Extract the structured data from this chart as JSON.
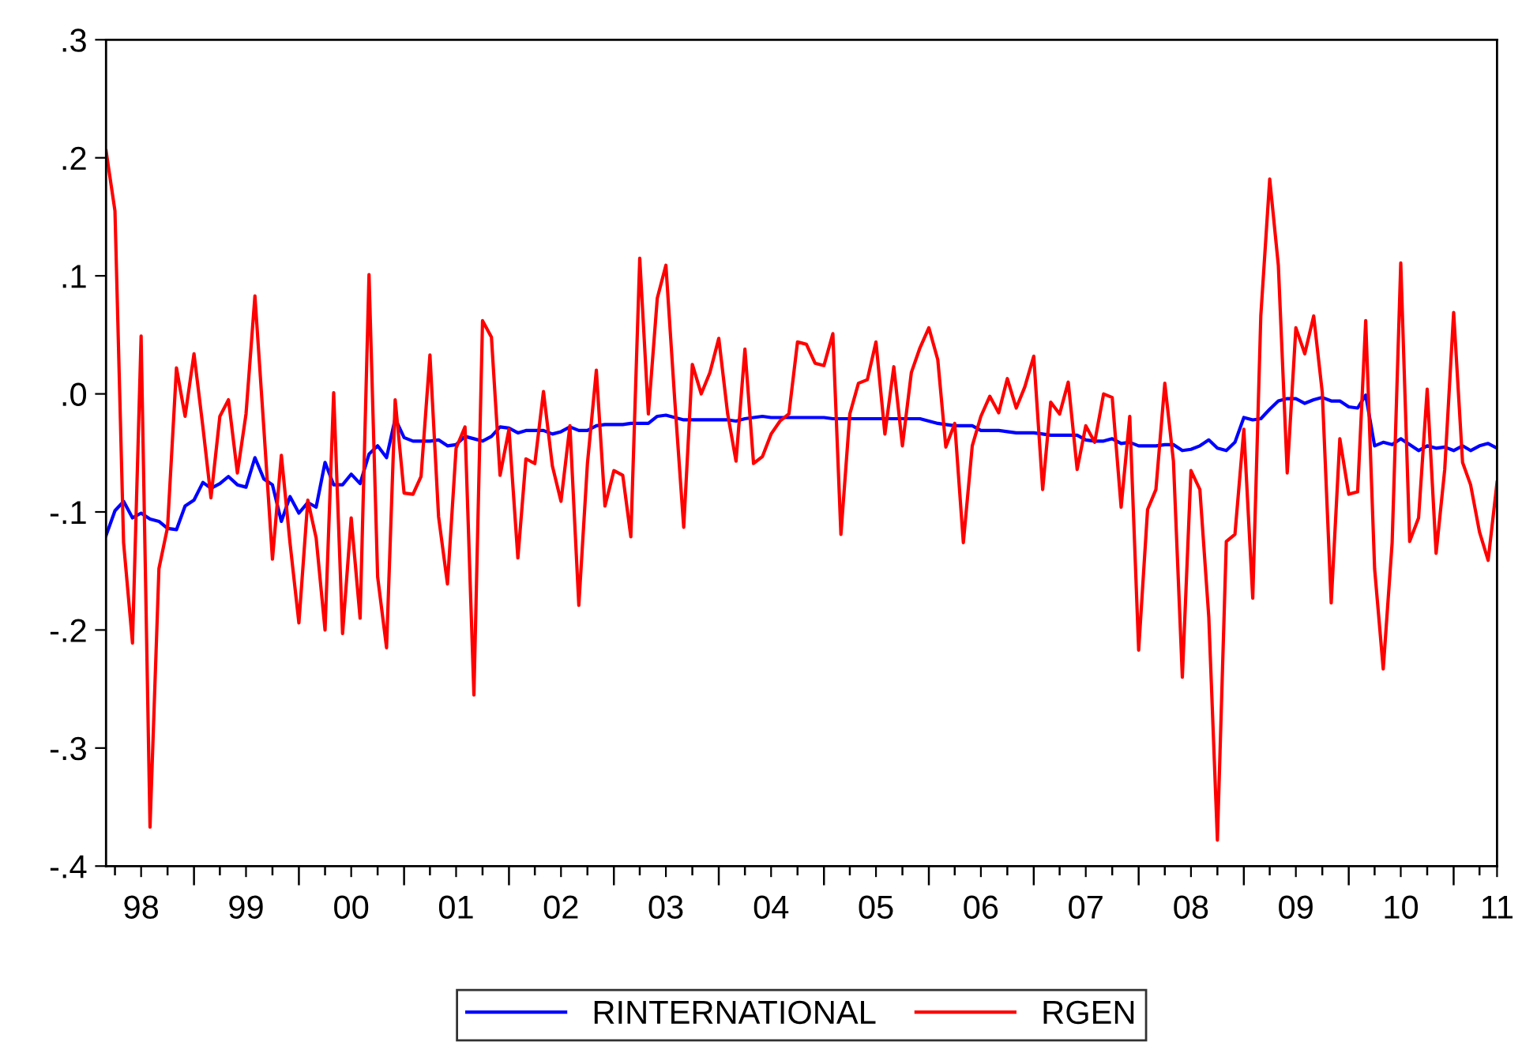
{
  "chart_data": {
    "type": "line",
    "x": [
      "1998-03",
      "1998-04",
      "1998-05",
      "1998-06",
      "1998-07",
      "1998-08",
      "1998-09",
      "1998-10",
      "1998-11",
      "1998-12",
      "1999-01",
      "1999-02",
      "1999-03",
      "1999-04",
      "1999-05",
      "1999-06",
      "1999-07",
      "1999-08",
      "1999-09",
      "1999-10",
      "1999-11",
      "1999-12",
      "2000-01",
      "2000-02",
      "2000-03",
      "2000-04",
      "2000-05",
      "2000-06",
      "2000-07",
      "2000-08",
      "2000-09",
      "2000-10",
      "2000-11",
      "2000-12",
      "2001-01",
      "2001-02",
      "2001-03",
      "2001-04",
      "2001-05",
      "2001-06",
      "2001-07",
      "2001-08",
      "2001-09",
      "2001-10",
      "2001-11",
      "2001-12",
      "2002-01",
      "2002-02",
      "2002-03",
      "2002-04",
      "2002-05",
      "2002-06",
      "2002-07",
      "2002-08",
      "2002-09",
      "2002-10",
      "2002-11",
      "2002-12",
      "2003-01",
      "2003-02",
      "2003-03",
      "2003-04",
      "2003-05",
      "2003-06",
      "2003-07",
      "2003-08",
      "2003-09",
      "2003-10",
      "2003-11",
      "2003-12",
      "2004-01",
      "2004-02",
      "2004-03",
      "2004-04",
      "2004-05",
      "2004-06",
      "2004-07",
      "2004-08",
      "2004-09",
      "2004-10",
      "2004-11",
      "2004-12",
      "2005-01",
      "2005-02",
      "2005-03",
      "2005-04",
      "2005-05",
      "2005-06",
      "2005-07",
      "2005-08",
      "2005-09",
      "2005-10",
      "2005-11",
      "2005-12",
      "2006-01",
      "2006-02",
      "2006-03",
      "2006-04",
      "2006-05",
      "2006-06",
      "2006-07",
      "2006-08",
      "2006-09",
      "2006-10",
      "2006-11",
      "2006-12",
      "2007-01",
      "2007-02",
      "2007-03",
      "2007-04",
      "2007-05",
      "2007-06",
      "2007-07",
      "2007-08",
      "2007-09",
      "2007-10",
      "2007-11",
      "2007-12",
      "2008-01",
      "2008-02",
      "2008-03",
      "2008-04",
      "2008-05",
      "2008-06",
      "2008-07",
      "2008-08",
      "2008-09",
      "2008-10",
      "2008-11",
      "2008-12",
      "2009-01",
      "2009-02",
      "2009-03",
      "2009-04",
      "2009-05",
      "2009-06",
      "2009-07",
      "2009-08",
      "2009-09",
      "2009-10",
      "2009-11",
      "2009-12",
      "2010-01",
      "2010-02",
      "2010-03",
      "2010-04",
      "2010-05",
      "2010-06",
      "2010-07",
      "2010-08",
      "2010-09",
      "2010-10",
      "2010-11",
      "2010-12",
      "2011-01",
      "2011-02",
      "2011-03",
      "2011-04",
      "2011-05",
      "2011-06"
    ],
    "series": [
      {
        "name": "RINTERNATIONAL",
        "color": "#0000ff",
        "values": [
          -0.12,
          -0.099,
          -0.091,
          -0.105,
          -0.101,
          -0.106,
          -0.108,
          -0.114,
          -0.115,
          -0.095,
          -0.09,
          -0.075,
          -0.08,
          -0.076,
          -0.07,
          -0.077,
          -0.079,
          -0.054,
          -0.072,
          -0.077,
          -0.108,
          -0.087,
          -0.101,
          -0.092,
          -0.096,
          -0.058,
          -0.077,
          -0.077,
          -0.068,
          -0.076,
          -0.051,
          -0.044,
          -0.054,
          -0.021,
          -0.037,
          -0.04,
          -0.04,
          -0.04,
          -0.039,
          -0.044,
          -0.043,
          -0.036,
          -0.038,
          -0.04,
          -0.036,
          -0.028,
          -0.029,
          -0.033,
          -0.031,
          -0.031,
          -0.031,
          -0.034,
          -0.032,
          -0.028,
          -0.031,
          -0.031,
          -0.027,
          -0.026,
          -0.026,
          -0.026,
          -0.025,
          -0.025,
          -0.025,
          -0.019,
          -0.018,
          -0.02,
          -0.022,
          -0.022,
          -0.022,
          -0.022,
          -0.022,
          -0.022,
          -0.023,
          -0.021,
          -0.02,
          -0.019,
          -0.02,
          -0.02,
          -0.02,
          -0.02,
          -0.02,
          -0.02,
          -0.02,
          -0.021,
          -0.021,
          -0.021,
          -0.021,
          -0.021,
          -0.021,
          -0.021,
          -0.021,
          -0.021,
          -0.021,
          -0.021,
          -0.023,
          -0.025,
          -0.026,
          -0.027,
          -0.027,
          -0.027,
          -0.031,
          -0.031,
          -0.031,
          -0.032,
          -0.033,
          -0.033,
          -0.033,
          -0.034,
          -0.035,
          -0.035,
          -0.035,
          -0.035,
          -0.039,
          -0.04,
          -0.04,
          -0.038,
          -0.042,
          -0.041,
          -0.044,
          -0.044,
          -0.044,
          -0.043,
          -0.043,
          -0.048,
          -0.047,
          -0.044,
          -0.039,
          -0.046,
          -0.048,
          -0.041,
          -0.02,
          -0.022,
          -0.021,
          -0.013,
          -0.006,
          -0.004,
          -0.004,
          -0.008,
          -0.005,
          -0.003,
          -0.006,
          -0.006,
          -0.011,
          -0.012,
          -0.001,
          -0.044,
          -0.041,
          -0.043,
          -0.038,
          -0.043,
          -0.048,
          -0.044,
          -0.046,
          -0.045,
          -0.048,
          -0.044,
          -0.048,
          -0.044,
          -0.042,
          -0.046
        ]
      },
      {
        "name": "RGEN",
        "color": "#ff0000",
        "values": [
          0.206,
          0.155,
          -0.126,
          -0.211,
          0.049,
          -0.367,
          -0.148,
          -0.113,
          0.022,
          -0.019,
          0.034,
          -0.028,
          -0.088,
          -0.019,
          -0.005,
          -0.067,
          -0.017,
          0.083,
          -0.029,
          -0.14,
          -0.052,
          -0.126,
          -0.194,
          -0.09,
          -0.122,
          -0.2,
          0.001,
          -0.203,
          -0.105,
          -0.19,
          0.101,
          -0.155,
          -0.215,
          -0.005,
          -0.084,
          -0.085,
          -0.07,
          0.033,
          -0.104,
          -0.161,
          -0.046,
          -0.028,
          -0.255,
          0.062,
          0.048,
          -0.069,
          -0.03,
          -0.139,
          -0.055,
          -0.059,
          0.002,
          -0.061,
          -0.091,
          -0.027,
          -0.179,
          -0.059,
          0.02,
          -0.095,
          -0.065,
          -0.069,
          -0.121,
          0.115,
          -0.017,
          0.081,
          0.109,
          -0.006,
          -0.113,
          0.025,
          0.0,
          0.018,
          0.047,
          -0.017,
          -0.057,
          0.038,
          -0.059,
          -0.053,
          -0.034,
          -0.023,
          -0.017,
          0.044,
          0.042,
          0.026,
          0.024,
          0.051,
          -0.119,
          -0.017,
          0.009,
          0.012,
          0.044,
          -0.034,
          0.023,
          -0.044,
          0.018,
          0.039,
          0.056,
          0.029,
          -0.045,
          -0.025,
          -0.126,
          -0.044,
          -0.019,
          -0.002,
          -0.016,
          0.013,
          -0.012,
          0.006,
          0.032,
          -0.081,
          -0.007,
          -0.017,
          0.01,
          -0.064,
          -0.027,
          -0.041,
          0.0,
          -0.003,
          -0.096,
          -0.019,
          -0.217,
          -0.098,
          -0.081,
          0.009,
          -0.057,
          -0.24,
          -0.065,
          -0.081,
          -0.189,
          -0.378,
          -0.125,
          -0.119,
          -0.03,
          -0.173,
          0.066,
          0.182,
          0.109,
          -0.067,
          0.056,
          0.034,
          0.066,
          0.001,
          -0.177,
          -0.038,
          -0.085,
          -0.083,
          0.062,
          -0.148,
          -0.233,
          -0.126,
          0.111,
          -0.125,
          -0.105,
          0.004,
          -0.135,
          -0.064,
          0.069,
          -0.058,
          -0.077,
          -0.117,
          -0.141,
          -0.075
        ]
      }
    ],
    "xlim": [
      "1998-03",
      "2011-06"
    ],
    "xticks": [
      {
        "value": "1998-04",
        "label": null
      },
      {
        "value": "1998-07",
        "label": "98"
      },
      {
        "value": "1998-10",
        "label": null
      },
      {
        "value": "1999-01",
        "label": null
      },
      {
        "value": "1999-04",
        "label": null
      },
      {
        "value": "1999-07",
        "label": "99"
      },
      {
        "value": "1999-10",
        "label": null
      },
      {
        "value": "2000-01",
        "label": null
      },
      {
        "value": "2000-04",
        "label": null
      },
      {
        "value": "2000-07",
        "label": "00"
      },
      {
        "value": "2000-10",
        "label": null
      },
      {
        "value": "2001-01",
        "label": null
      },
      {
        "value": "2001-04",
        "label": null
      },
      {
        "value": "2001-07",
        "label": "01"
      },
      {
        "value": "2001-10",
        "label": null
      },
      {
        "value": "2002-01",
        "label": null
      },
      {
        "value": "2002-04",
        "label": null
      },
      {
        "value": "2002-07",
        "label": "02"
      },
      {
        "value": "2002-10",
        "label": null
      },
      {
        "value": "2003-01",
        "label": null
      },
      {
        "value": "2003-04",
        "label": null
      },
      {
        "value": "2003-07",
        "label": "03"
      },
      {
        "value": "2003-10",
        "label": null
      },
      {
        "value": "2004-01",
        "label": null
      },
      {
        "value": "2004-04",
        "label": null
      },
      {
        "value": "2004-07",
        "label": "04"
      },
      {
        "value": "2004-10",
        "label": null
      },
      {
        "value": "2005-01",
        "label": null
      },
      {
        "value": "2005-04",
        "label": null
      },
      {
        "value": "2005-07",
        "label": "05"
      },
      {
        "value": "2005-10",
        "label": null
      },
      {
        "value": "2006-01",
        "label": null
      },
      {
        "value": "2006-04",
        "label": null
      },
      {
        "value": "2006-07",
        "label": "06"
      },
      {
        "value": "2006-10",
        "label": null
      },
      {
        "value": "2007-01",
        "label": null
      },
      {
        "value": "2007-04",
        "label": null
      },
      {
        "value": "2007-07",
        "label": "07"
      },
      {
        "value": "2007-10",
        "label": null
      },
      {
        "value": "2008-01",
        "label": null
      },
      {
        "value": "2008-04",
        "label": null
      },
      {
        "value": "2008-07",
        "label": "08"
      },
      {
        "value": "2008-10",
        "label": null
      },
      {
        "value": "2009-01",
        "label": null
      },
      {
        "value": "2009-04",
        "label": null
      },
      {
        "value": "2009-07",
        "label": "09"
      },
      {
        "value": "2009-10",
        "label": null
      },
      {
        "value": "2010-01",
        "label": null
      },
      {
        "value": "2010-04",
        "label": null
      },
      {
        "value": "2010-07",
        "label": "10"
      },
      {
        "value": "2010-10",
        "label": null
      },
      {
        "value": "2011-01",
        "label": null
      },
      {
        "value": "2011-04",
        "label": null
      },
      {
        "value": "2011-06",
        "label": "11"
      }
    ],
    "ylim": [
      -0.4,
      0.3
    ],
    "yticks": [
      {
        "value": -0.4,
        "label": "-.4"
      },
      {
        "value": -0.3,
        "label": "-.3"
      },
      {
        "value": -0.2,
        "label": "-.2"
      },
      {
        "value": -0.1,
        "label": "-.1"
      },
      {
        "value": 0.0,
        "label": ".0"
      },
      {
        "value": 0.1,
        "label": ".1"
      },
      {
        "value": 0.2,
        "label": ".2"
      },
      {
        "value": 0.3,
        "label": ".3"
      }
    ],
    "grid": false,
    "legend": "bottom",
    "marker": "none",
    "line_style": "solid"
  }
}
